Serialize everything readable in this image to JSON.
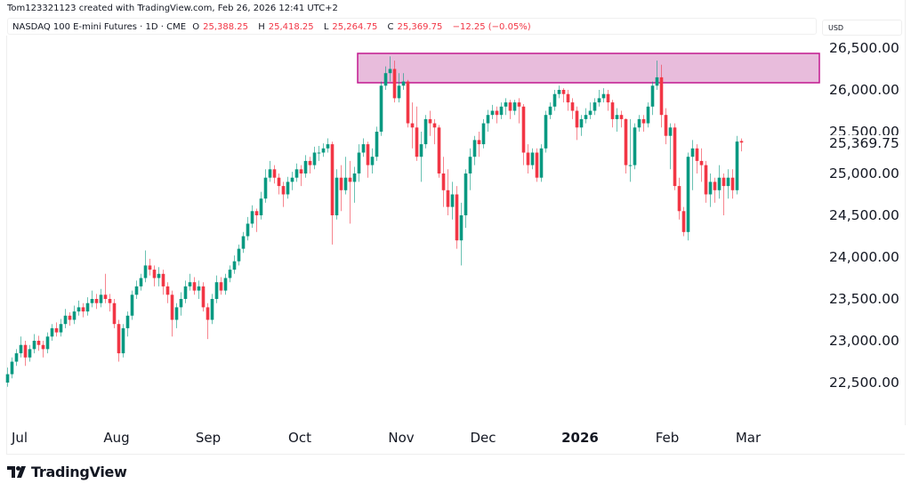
{
  "credit": "Tom123321123 created with TradingView.com, Feb 26, 2026 12:41 UTC+2",
  "legend": {
    "symbol": "NASDAQ 100 E-mini Futures · 1D · CME",
    "o_label": "O",
    "o": "25,388.25",
    "h_label": "H",
    "h": "25,418.25",
    "l_label": "L",
    "l": "25,264.75",
    "c_label": "C",
    "c": "25,369.75",
    "change": "−12.25 (−0.05%)"
  },
  "currency": "USD",
  "colors": {
    "up": "#089981",
    "down": "#f23645",
    "zone_fill": "#e8bcdc",
    "zone_border": "#c2188f"
  },
  "chart_data": {
    "type": "candlestick",
    "interval": "1D",
    "ylim": [
      22250,
      26600
    ],
    "price_ticks": [
      "26,500.00",
      "26,000.00",
      "25,500.00",
      "25,000.00",
      "24,500.00",
      "24,000.00",
      "23,500.00",
      "23,000.00",
      "22,500.00"
    ],
    "price_tick_values": [
      26500,
      26000,
      25500,
      25000,
      24500,
      24000,
      23500,
      23000,
      22500
    ],
    "last_price_label": "25,369.75",
    "last_price": 25369.75,
    "time_ticks": [
      {
        "label": "Jul",
        "year": false
      },
      {
        "label": "Aug",
        "year": false
      },
      {
        "label": "Sep",
        "year": false
      },
      {
        "label": "Oct",
        "year": false
      },
      {
        "label": "Nov",
        "year": false
      },
      {
        "label": "Dec",
        "year": false
      },
      {
        "label": "2026",
        "year": true
      },
      {
        "label": "Feb",
        "year": false
      },
      {
        "label": "Mar",
        "year": false
      }
    ],
    "zone": {
      "low": 26085,
      "high": 26436
    },
    "candles": [
      [
        22500,
        22680,
        22450,
        22600
      ],
      [
        22600,
        22800,
        22550,
        22750
      ],
      [
        22750,
        22900,
        22700,
        22850
      ],
      [
        22850,
        23050,
        22800,
        22950
      ],
      [
        22950,
        23000,
        22700,
        22800
      ],
      [
        22800,
        22950,
        22750,
        22900
      ],
      [
        22900,
        23080,
        22850,
        23000
      ],
      [
        23000,
        23060,
        22880,
        22950
      ],
      [
        22950,
        23000,
        22800,
        22900
      ],
      [
        22900,
        23100,
        22850,
        23050
      ],
      [
        23050,
        23200,
        23000,
        23150
      ],
      [
        23150,
        23220,
        23050,
        23100
      ],
      [
        23100,
        23260,
        23050,
        23200
      ],
      [
        23200,
        23380,
        23150,
        23300
      ],
      [
        23300,
        23340,
        23180,
        23250
      ],
      [
        23250,
        23420,
        23200,
        23350
      ],
      [
        23350,
        23480,
        23300,
        23400
      ],
      [
        23400,
        23450,
        23280,
        23350
      ],
      [
        23350,
        23520,
        23300,
        23450
      ],
      [
        23450,
        23600,
        23400,
        23500
      ],
      [
        23500,
        23560,
        23380,
        23450
      ],
      [
        23450,
        23620,
        23400,
        23550
      ],
      [
        23550,
        23800,
        23450,
        23500
      ],
      [
        23500,
        23560,
        23350,
        23450
      ],
      [
        23450,
        23500,
        23150,
        23200
      ],
      [
        23200,
        23250,
        22750,
        22850
      ],
      [
        22850,
        23200,
        22800,
        23150
      ],
      [
        23150,
        23350,
        23050,
        23300
      ],
      [
        23300,
        23600,
        23250,
        23550
      ],
      [
        23550,
        23720,
        23500,
        23650
      ],
      [
        23650,
        23800,
        23600,
        23750
      ],
      [
        23750,
        24080,
        23700,
        23900
      ],
      [
        23900,
        23980,
        23780,
        23850
      ],
      [
        23850,
        23900,
        23650,
        23750
      ],
      [
        23750,
        23880,
        23650,
        23800
      ],
      [
        23800,
        23850,
        23550,
        23650
      ],
      [
        23650,
        23700,
        23450,
        23550
      ],
      [
        23550,
        23600,
        23050,
        23250
      ],
      [
        23250,
        23450,
        23150,
        23400
      ],
      [
        23400,
        23580,
        23300,
        23500
      ],
      [
        23500,
        23720,
        23450,
        23650
      ],
      [
        23650,
        23800,
        23600,
        23700
      ],
      [
        23700,
        23760,
        23550,
        23600
      ],
      [
        23600,
        23720,
        23500,
        23650
      ],
      [
        23650,
        23700,
        23350,
        23400
      ],
      [
        23400,
        23450,
        23020,
        23250
      ],
      [
        23250,
        23560,
        23200,
        23500
      ],
      [
        23500,
        23780,
        23450,
        23700
      ],
      [
        23700,
        23760,
        23550,
        23600
      ],
      [
        23600,
        23800,
        23550,
        23750
      ],
      [
        23750,
        23900,
        23700,
        23850
      ],
      [
        23850,
        24020,
        23800,
        23950
      ],
      [
        23950,
        24150,
        23900,
        24100
      ],
      [
        24100,
        24300,
        24050,
        24250
      ],
      [
        24250,
        24480,
        24200,
        24400
      ],
      [
        24400,
        24620,
        24350,
        24550
      ],
      [
        24550,
        24580,
        24300,
        24500
      ],
      [
        24500,
        24780,
        24450,
        24700
      ],
      [
        24700,
        25050,
        24650,
        24950
      ],
      [
        24950,
        25150,
        24900,
        25050
      ],
      [
        25050,
        25100,
        24880,
        24950
      ],
      [
        24950,
        25000,
        24750,
        24850
      ],
      [
        24850,
        24900,
        24600,
        24750
      ],
      [
        24750,
        24960,
        24700,
        24900
      ],
      [
        24900,
        25020,
        24800,
        24950
      ],
      [
        24950,
        25120,
        24900,
        25050
      ],
      [
        25050,
        25100,
        24850,
        25000
      ],
      [
        25000,
        25220,
        24950,
        25150
      ],
      [
        25150,
        25200,
        25000,
        25100
      ],
      [
        25100,
        25320,
        25050,
        25250
      ],
      [
        25250,
        25330,
        25150,
        25250
      ],
      [
        25250,
        25360,
        25200,
        25300
      ],
      [
        25300,
        25420,
        25250,
        25350
      ],
      [
        25350,
        25380,
        24150,
        24500
      ],
      [
        24500,
        25050,
        24450,
        24950
      ],
      [
        24950,
        25100,
        24550,
        24800
      ],
      [
        24800,
        25200,
        24750,
        24950
      ],
      [
        24950,
        25150,
        24400,
        24900
      ],
      [
        24900,
        25080,
        24650,
        25000
      ],
      [
        25000,
        25350,
        24900,
        25250
      ],
      [
        25250,
        25420,
        25200,
        25350
      ],
      [
        25350,
        25380,
        24950,
        25100
      ],
      [
        25100,
        25300,
        25000,
        25200
      ],
      [
        25200,
        25560,
        25150,
        25500
      ],
      [
        25500,
        26100,
        25450,
        26050
      ],
      [
        26050,
        26280,
        26000,
        26200
      ],
      [
        26200,
        26400,
        26100,
        26250
      ],
      [
        26250,
        26350,
        25850,
        25900
      ],
      [
        25900,
        26200,
        25850,
        26050
      ],
      [
        26050,
        26200,
        26000,
        26100
      ],
      [
        26100,
        26120,
        25550,
        25600
      ],
      [
        25600,
        25850,
        25300,
        25550
      ],
      [
        25550,
        25800,
        25150,
        25200
      ],
      [
        25200,
        25500,
        24900,
        25350
      ],
      [
        25350,
        25700,
        25300,
        25650
      ],
      [
        25650,
        25750,
        25450,
        25600
      ],
      [
        25600,
        25650,
        25350,
        25550
      ],
      [
        25550,
        25580,
        24950,
        25000
      ],
      [
        25000,
        25200,
        24600,
        24800
      ],
      [
        24800,
        25050,
        24500,
        24600
      ],
      [
        24600,
        24900,
        24450,
        24750
      ],
      [
        24750,
        24850,
        24100,
        24200
      ],
      [
        24200,
        24650,
        23900,
        24500
      ],
      [
        24500,
        25050,
        24350,
        25000
      ],
      [
        25000,
        25300,
        24800,
        25200
      ],
      [
        25200,
        25450,
        25100,
        25400
      ],
      [
        25400,
        25500,
        25200,
        25350
      ],
      [
        25350,
        25650,
        25300,
        25600
      ],
      [
        25600,
        25760,
        25500,
        25700
      ],
      [
        25700,
        25820,
        25650,
        25750
      ],
      [
        25750,
        25800,
        25600,
        25700
      ],
      [
        25700,
        25850,
        25650,
        25800
      ],
      [
        25800,
        25900,
        25700,
        25850
      ],
      [
        25850,
        25880,
        25650,
        25750
      ],
      [
        25750,
        25880,
        25700,
        25850
      ],
      [
        25850,
        25900,
        25600,
        25800
      ],
      [
        25800,
        25830,
        25100,
        25250
      ],
      [
        25250,
        25350,
        25000,
        25100
      ],
      [
        25100,
        25300,
        25050,
        25250
      ],
      [
        25250,
        25300,
        24900,
        24950
      ],
      [
        24950,
        25350,
        24900,
        25300
      ],
      [
        25300,
        25750,
        25250,
        25700
      ],
      [
        25700,
        25850,
        25650,
        25800
      ],
      [
        25800,
        26000,
        25750,
        25950
      ],
      [
        25950,
        26050,
        25900,
        26000
      ],
      [
        26000,
        26020,
        25850,
        25950
      ],
      [
        25950,
        26000,
        25750,
        25850
      ],
      [
        25850,
        25900,
        25650,
        25750
      ],
      [
        25750,
        25800,
        25400,
        25550
      ],
      [
        25550,
        25700,
        25450,
        25650
      ],
      [
        25650,
        25780,
        25600,
        25700
      ],
      [
        25700,
        25850,
        25650,
        25750
      ],
      [
        25750,
        25900,
        25700,
        25850
      ],
      [
        25850,
        26000,
        25800,
        25900
      ],
      [
        25900,
        26020,
        25850,
        25950
      ],
      [
        25950,
        26000,
        25750,
        25850
      ],
      [
        25850,
        25880,
        25550,
        25650
      ],
      [
        25650,
        25780,
        25500,
        25700
      ],
      [
        25700,
        25750,
        25550,
        25650
      ],
      [
        25650,
        25660,
        25000,
        25100
      ],
      [
        25100,
        25650,
        24900,
        25100
      ],
      [
        25100,
        25600,
        25050,
        25550
      ],
      [
        25550,
        25700,
        25500,
        25650
      ],
      [
        25650,
        25700,
        25500,
        25600
      ],
      [
        25600,
        25850,
        25550,
        25800
      ],
      [
        25800,
        26100,
        25700,
        26050
      ],
      [
        26050,
        26350,
        26000,
        26150
      ],
      [
        26150,
        26300,
        25550,
        25700
      ],
      [
        25700,
        25780,
        25350,
        25450
      ],
      [
        25450,
        25600,
        25050,
        25550
      ],
      [
        25550,
        25600,
        24800,
        24850
      ],
      [
        24850,
        24950,
        24450,
        24550
      ],
      [
        24550,
        24600,
        24250,
        24300
      ],
      [
        24300,
        25250,
        24200,
        25200
      ],
      [
        25200,
        25400,
        24800,
        25300
      ],
      [
        25300,
        25350,
        25000,
        25150
      ],
      [
        25150,
        25300,
        24900,
        25100
      ],
      [
        25100,
        25150,
        24650,
        24750
      ],
      [
        24750,
        25000,
        24600,
        24900
      ],
      [
        24900,
        24950,
        24650,
        24800
      ],
      [
        24800,
        25100,
        24700,
        24950
      ],
      [
        24950,
        25000,
        24500,
        24850
      ],
      [
        24850,
        25050,
        24700,
        24950
      ],
      [
        24950,
        25050,
        24700,
        24800
      ],
      [
        24800,
        25450,
        24750,
        25382
      ],
      [
        25388.25,
        25418.25,
        25264.75,
        25369.75
      ]
    ]
  },
  "branding": {
    "logo_text": "TradingView"
  }
}
